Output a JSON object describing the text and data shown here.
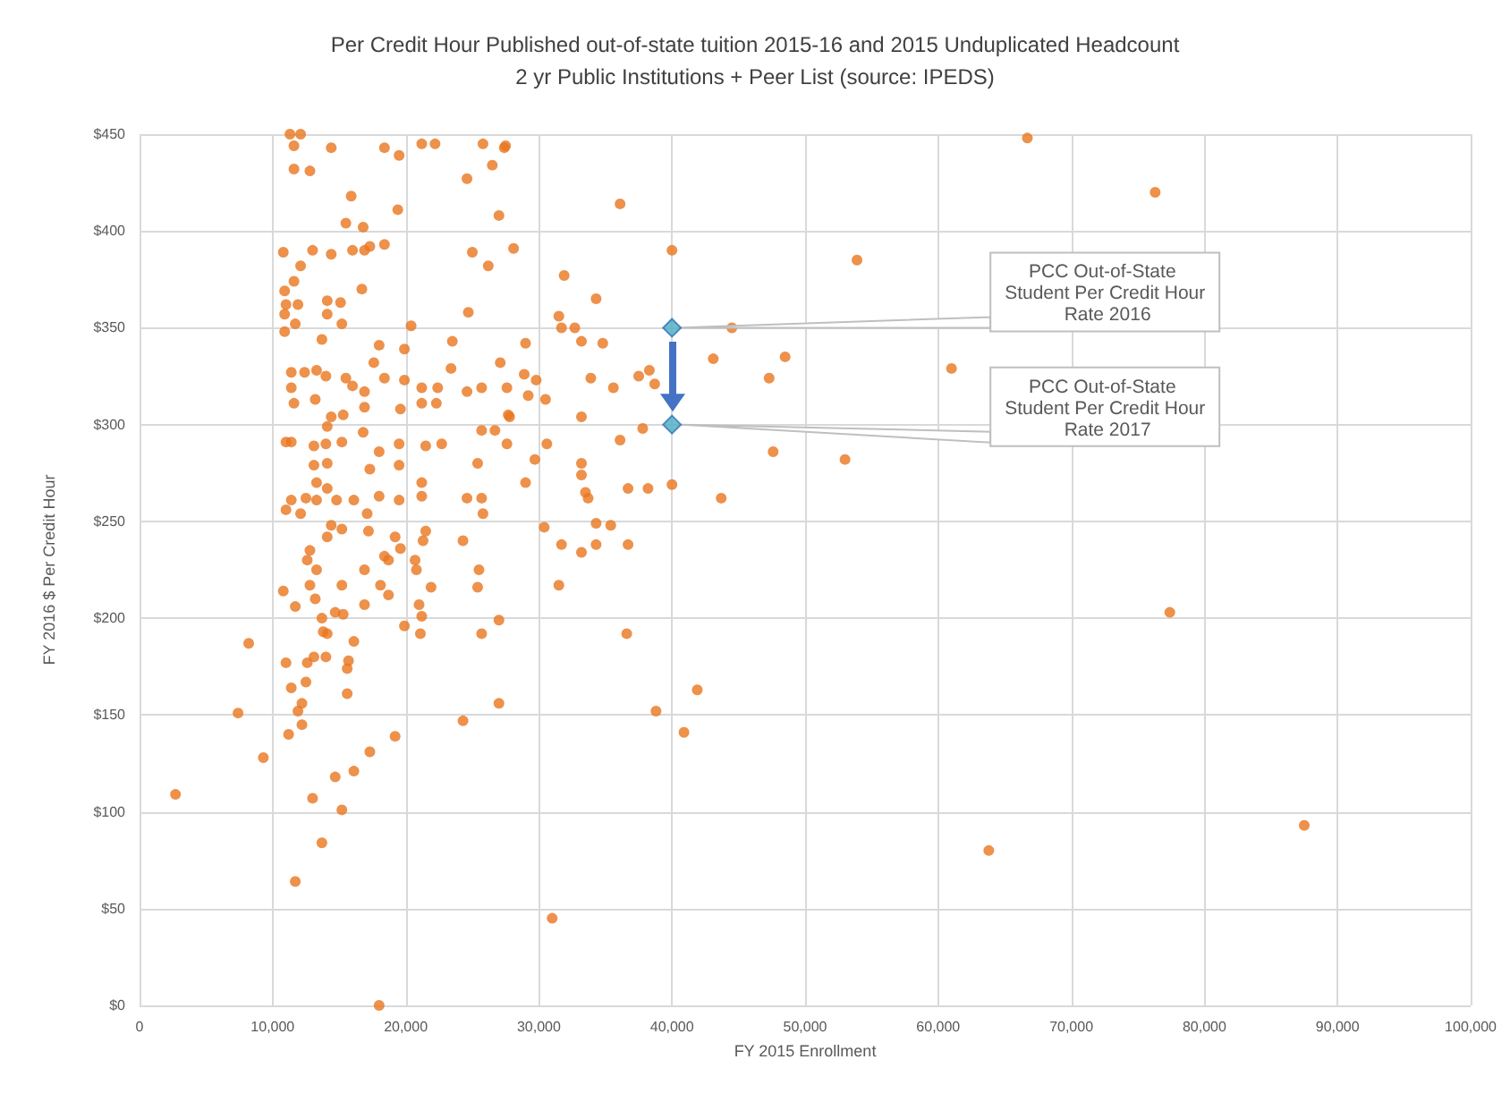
{
  "chart_data": {
    "type": "scatter",
    "title": "Per Credit Hour Published out-of-state tuition 2015-16 and 2015 Unduplicated Headcount",
    "subtitle": "2 yr Public Institutions + Peer List (source: IPEDS)",
    "xlabel": "FY 2015 Enrollment",
    "ylabel": "FY 2016 $ Per Credit Hour",
    "xlim": [
      0,
      100000
    ],
    "xticks": [
      0,
      {
        "value": 10000,
        "label": "10,000"
      },
      {
        "value": 20000,
        "label": "20,000"
      },
      {
        "value": 30000,
        "label": "30,000"
      },
      {
        "value": 40000,
        "label": "40,000"
      },
      {
        "value": 50000,
        "label": "50,000"
      },
      {
        "value": 60000,
        "label": "60,000"
      },
      {
        "value": 70000,
        "label": "70,000"
      },
      {
        "value": 80000,
        "label": "80,000"
      },
      {
        "value": 90000,
        "label": "90,000"
      },
      {
        "value": 100000,
        "label": "100,000"
      }
    ],
    "ylim": [
      0,
      450
    ],
    "yticks": [
      {
        "value": 0,
        "label": "$0"
      },
      {
        "value": 50,
        "label": "$50"
      },
      {
        "value": 100,
        "label": "$100"
      },
      {
        "value": 150,
        "label": "$150"
      },
      {
        "value": 200,
        "label": "$200"
      },
      {
        "value": 250,
        "label": "$250"
      },
      {
        "value": 300,
        "label": "$300"
      },
      {
        "value": 350,
        "label": "$350"
      },
      {
        "value": 400,
        "label": "$400"
      },
      {
        "value": 450,
        "label": "$450"
      }
    ],
    "grid": true,
    "series": [
      {
        "color": "#e8761e",
        "marker": "circle",
        "x": [
          2700,
          7400,
          8200,
          9300,
          11700,
          18000,
          31000,
          63800,
          87500,
          77400,
          66700,
          76300,
          53900,
          61000,
          53000,
          47600,
          48500,
          47300,
          44500,
          43100,
          43700,
          40000,
          40000,
          38200,
          36700,
          36100,
          37800,
          36100,
          37500,
          38300,
          38700,
          35600,
          33900,
          33200,
          34300,
          31900,
          31500,
          31700,
          32700,
          33200,
          34800,
          29000,
          30500,
          29200,
          29800,
          33200,
          33200,
          30600,
          29700,
          29000,
          33500,
          33700,
          30400,
          34300,
          35400,
          27800,
          27600,
          28100,
          27500,
          31700,
          33200,
          34300,
          36700,
          31500,
          36600,
          41900,
          38800,
          40900,
          27000,
          27000,
          24300,
          25500,
          25400,
          25700,
          24300,
          21900,
          20700,
          20800,
          21300,
          21500,
          21000,
          21200,
          21100,
          19900,
          19200,
          19600,
          18400,
          18700,
          18100,
          18700,
          16900,
          17200,
          16900,
          17300,
          19200,
          16100,
          14700,
          15200,
          13000,
          13700,
          15600,
          16100,
          15600,
          15700,
          15200,
          15300,
          14700,
          13800,
          14100,
          14000,
          13100,
          12600,
          12500,
          12200,
          12200,
          11900,
          11400,
          11200,
          11000,
          11700,
          10800,
          13200,
          12800,
          13700,
          12600,
          12800,
          13300,
          14100,
          14400,
          15200,
          11300,
          12100,
          11600,
          14400,
          18400,
          19500,
          21200,
          22200,
          25800,
          27400,
          26500,
          24600,
          11600,
          12800,
          15900,
          19400,
          27000,
          15500,
          16800,
          25000,
          26200,
          10800,
          13000,
          14400,
          16000,
          17300,
          18400,
          12100,
          11600,
          10900,
          11000,
          11900,
          10900,
          10900,
          11700,
          14100,
          15100,
          14100,
          15200,
          16700,
          16900,
          24700,
          20400,
          23500,
          18000,
          19900,
          13700,
          11400,
          12400,
          13300,
          14000,
          15500,
          16000,
          16900,
          17600,
          18400,
          19900,
          21200,
          22400,
          23400,
          24600,
          25700,
          27100,
          27600,
          28900,
          11400,
          11600,
          13200,
          14400,
          15300,
          14100,
          16900,
          19600,
          21200,
          22300,
          11000,
          11400,
          13100,
          14000,
          15200,
          16800,
          18000,
          19500,
          21500,
          22700,
          25700,
          26700,
          27700,
          13100,
          14100,
          13300,
          14100,
          17300,
          19500,
          21200,
          25400,
          11400,
          12500,
          11000,
          12100,
          13300,
          14800,
          16100,
          17100,
          18000,
          19500,
          21200,
          24600,
          25700,
          25800
        ],
        "values": [
          109,
          151,
          187,
          128,
          64,
          0,
          45,
          80,
          93,
          203,
          448,
          420,
          385,
          329,
          282,
          286,
          335,
          324,
          350,
          334,
          262,
          390,
          269,
          267,
          267,
          414,
          298,
          292,
          325,
          328,
          321,
          319,
          324,
          304,
          365,
          377,
          356,
          350,
          350,
          343,
          342,
          342,
          313,
          315,
          323,
          280,
          274,
          290,
          282,
          270,
          265,
          262,
          247,
          249,
          248,
          304,
          290,
          391,
          444,
          238,
          234,
          238,
          238,
          217,
          192,
          163,
          152,
          141,
          199,
          156,
          240,
          225,
          216,
          192,
          147,
          216,
          230,
          225,
          240,
          245,
          207,
          201,
          192,
          196,
          242,
          236,
          232,
          230,
          217,
          212,
          225,
          245,
          207,
          131,
          139,
          121,
          118,
          101,
          107,
          84,
          161,
          188,
          174,
          178,
          217,
          202,
          203,
          193,
          192,
          180,
          180,
          177,
          167,
          156,
          145,
          152,
          164,
          140,
          177,
          206,
          214,
          210,
          217,
          200,
          230,
          235,
          225,
          242,
          248,
          246,
          450,
          450,
          444,
          443,
          443,
          439,
          445,
          445,
          445,
          443,
          434,
          427,
          432,
          431,
          418,
          411,
          408,
          404,
          402,
          389,
          382,
          389,
          390,
          388,
          390,
          392,
          393,
          382,
          374,
          369,
          362,
          362,
          357,
          348,
          352,
          364,
          363,
          357,
          352,
          370,
          390,
          358,
          351,
          343,
          341,
          339,
          344,
          327,
          327,
          328,
          325,
          324,
          320,
          317,
          332,
          324,
          323,
          319,
          319,
          329,
          317,
          319,
          332,
          319,
          326,
          319,
          311,
          313,
          304,
          305,
          299,
          309,
          308,
          311,
          311,
          291,
          291,
          289,
          290,
          291,
          296,
          286,
          290,
          289,
          290,
          297,
          297,
          305,
          279,
          280,
          270,
          267,
          277,
          279,
          270,
          280,
          261,
          262,
          256,
          254,
          261,
          261,
          261,
          254,
          263,
          261,
          263,
          262,
          262,
          254
        ]
      },
      {
        "color": "#4bacc6",
        "marker": "diamond",
        "x": [
          40000,
          40000
        ],
        "values": [
          350,
          300
        ]
      }
    ],
    "annotations": [
      {
        "text": "PCC Out-of-State Student Per Credit Hour Rate 2016",
        "x": 40000,
        "y": 350
      },
      {
        "text": "PCC Out-of-State Student Per Credit Hour Rate 2017",
        "x": 40000,
        "y": 300
      }
    ]
  }
}
